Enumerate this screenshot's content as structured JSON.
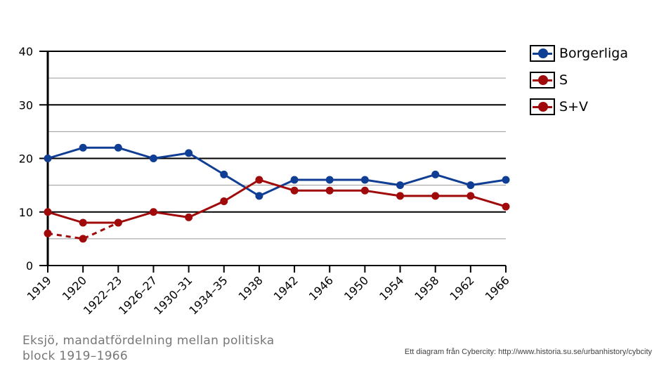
{
  "chart_data": {
    "type": "line",
    "categories": [
      "1919",
      "1920",
      "1922–23",
      "1926–27",
      "1930–31",
      "1934–35",
      "1938",
      "1942",
      "1946",
      "1950",
      "1954",
      "1958",
      "1962",
      "1966"
    ],
    "ylim": [
      0,
      40
    ],
    "yticks": [
      "0",
      "10",
      "20",
      "30",
      "40"
    ],
    "grid": true,
    "legend_position": "right",
    "series": [
      {
        "name": "Borgerliga",
        "color": "#103e94",
        "style": "solid",
        "values": [
          20,
          22,
          22,
          20,
          21,
          17,
          13,
          16,
          16,
          16,
          15,
          17,
          15,
          16
        ]
      },
      {
        "name": "S",
        "color": "#a00a0a",
        "style": "dashed",
        "values": [
          6,
          5,
          8,
          null,
          null,
          null,
          null,
          null,
          null,
          null,
          null,
          null,
          null,
          null
        ]
      },
      {
        "name": "S+V",
        "color": "#a00a0a",
        "style": "solid",
        "values": [
          10,
          8,
          8,
          10,
          9,
          12,
          16,
          14,
          14,
          14,
          13,
          13,
          13,
          11
        ]
      }
    ]
  },
  "caption": {
    "line1": "Eksjö, mandatfördelning  mellan politiska",
    "line2": "block 1919–1966"
  },
  "credit": "Ett diagram från Cybercity: http://www.historia.su.se/urbanhistory/cybcity"
}
